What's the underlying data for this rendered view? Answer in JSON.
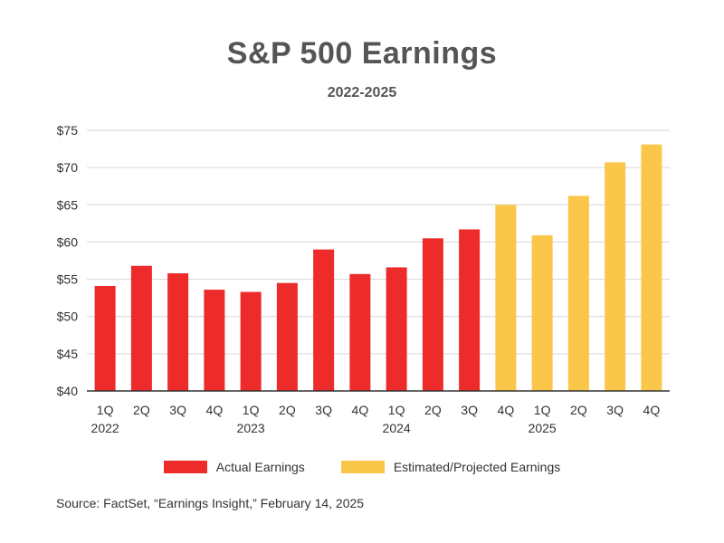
{
  "chart_data": {
    "type": "bar",
    "title": "S&P 500 Earnings",
    "subtitle": "2022-2025",
    "categories": [
      "1Q",
      "2Q",
      "3Q",
      "4Q",
      "1Q",
      "2Q",
      "3Q",
      "4Q",
      "1Q",
      "2Q",
      "3Q",
      "4Q",
      "1Q",
      "2Q",
      "3Q",
      "4Q"
    ],
    "year_labels": [
      {
        "index": 0,
        "label": "2022"
      },
      {
        "index": 4,
        "label": "2023"
      },
      {
        "index": 8,
        "label": "2024"
      },
      {
        "index": 12,
        "label": "2025"
      }
    ],
    "series": [
      {
        "name": "Actual Earnings",
        "color": "#ee2b2b",
        "values": [
          54.1,
          56.8,
          55.8,
          53.6,
          53.3,
          54.5,
          59.0,
          55.7,
          56.6,
          60.5,
          61.7,
          null,
          null,
          null,
          null,
          null
        ]
      },
      {
        "name": "Estimated/Projected Earnings",
        "color": "#fbc74a",
        "values": [
          null,
          null,
          null,
          null,
          null,
          null,
          null,
          null,
          null,
          null,
          null,
          65.0,
          60.9,
          66.2,
          70.7,
          73.1
        ]
      }
    ],
    "yticks": [
      "$40",
      "$45",
      "$50",
      "$55",
      "$60",
      "$65",
      "$70",
      "$75"
    ],
    "ylim": [
      40,
      75
    ],
    "grid": true,
    "legend_position": "bottom"
  },
  "source": "Source: FactSet, “Earnings Insight,” February 14, 2025"
}
